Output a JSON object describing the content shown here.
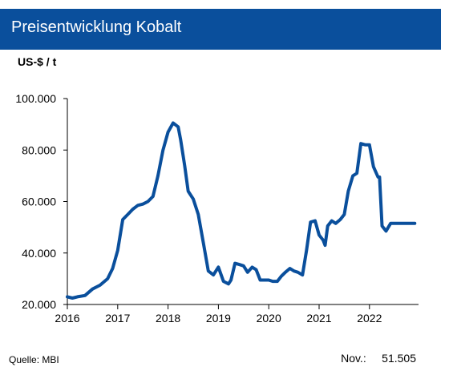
{
  "header": {
    "title": "Preisentwicklung Kobalt",
    "color": "#0a4f9c"
  },
  "unit_label": "US-$ / t",
  "footer": {
    "source": "Quelle: MBI",
    "latest_label": "Nov.:",
    "latest_value": "51.505"
  },
  "chart_data": {
    "type": "line",
    "title": "Preisentwicklung Kobalt",
    "ylabel": "US-$ / t",
    "xlabel": "",
    "ylim": [
      20000,
      100000
    ],
    "xlim": [
      2016.0,
      2022.9
    ],
    "yticks": [
      {
        "value": 20000,
        "label": "20.000"
      },
      {
        "value": 40000,
        "label": "40.000"
      },
      {
        "value": 60000,
        "label": "60.000"
      },
      {
        "value": 80000,
        "label": "80.000"
      },
      {
        "value": 100000,
        "label": "100.000"
      }
    ],
    "xticks": [
      {
        "value": 2016,
        "label": "2016"
      },
      {
        "value": 2017,
        "label": "2017"
      },
      {
        "value": 2018,
        "label": "2018"
      },
      {
        "value": 2019,
        "label": "2019"
      },
      {
        "value": 2020,
        "label": "2020"
      },
      {
        "value": 2021,
        "label": "2021"
      },
      {
        "value": 2022,
        "label": "2022"
      }
    ],
    "grid": false,
    "series": [
      {
        "color": "#0a4f9c",
        "x": [
          2016.0,
          2016.1,
          2016.2,
          2016.35,
          2016.5,
          2016.65,
          2016.8,
          2016.9,
          2017.0,
          2017.1,
          2017.2,
          2017.3,
          2017.4,
          2017.5,
          2017.6,
          2017.7,
          2017.8,
          2017.9,
          2018.0,
          2018.1,
          2018.2,
          2018.25,
          2018.33,
          2018.4,
          2018.5,
          2018.6,
          2018.7,
          2018.8,
          2018.9,
          2019.0,
          2019.1,
          2019.2,
          2019.25,
          2019.33,
          2019.42,
          2019.5,
          2019.58,
          2019.67,
          2019.75,
          2019.83,
          2019.92,
          2020.0,
          2020.08,
          2020.17,
          2020.25,
          2020.33,
          2020.42,
          2020.5,
          2020.58,
          2020.67,
          2020.75,
          2020.83,
          2020.92,
          2021.0,
          2021.08,
          2021.12,
          2021.17,
          2021.25,
          2021.33,
          2021.42,
          2021.5,
          2021.58,
          2021.67,
          2021.75,
          2021.83,
          2021.92,
          2022.0,
          2022.08,
          2022.17,
          2022.2,
          2022.25,
          2022.33,
          2022.42,
          2022.5,
          2022.55,
          2022.6,
          2022.67,
          2022.75,
          2022.9
        ],
        "values": [
          23000,
          22500,
          23000,
          23500,
          26000,
          27500,
          30000,
          34000,
          41000,
          53000,
          55000,
          57000,
          58500,
          59000,
          60000,
          62000,
          70000,
          80000,
          87000,
          90500,
          89000,
          84000,
          74000,
          64000,
          61000,
          55000,
          44000,
          33000,
          31500,
          34500,
          29000,
          28000,
          29500,
          36000,
          35500,
          35000,
          32500,
          34500,
          33500,
          29500,
          29500,
          29500,
          29000,
          29000,
          31000,
          32500,
          34000,
          33000,
          32500,
          31500,
          41000,
          52000,
          52500,
          47000,
          45000,
          43000,
          50500,
          52500,
          51500,
          53000,
          55000,
          64000,
          70000,
          71000,
          82500,
          82000,
          82000,
          73500,
          69500,
          69500,
          50500,
          48500,
          51500,
          51500,
          51500,
          51500,
          51500,
          51500,
          51500
        ]
      }
    ]
  }
}
